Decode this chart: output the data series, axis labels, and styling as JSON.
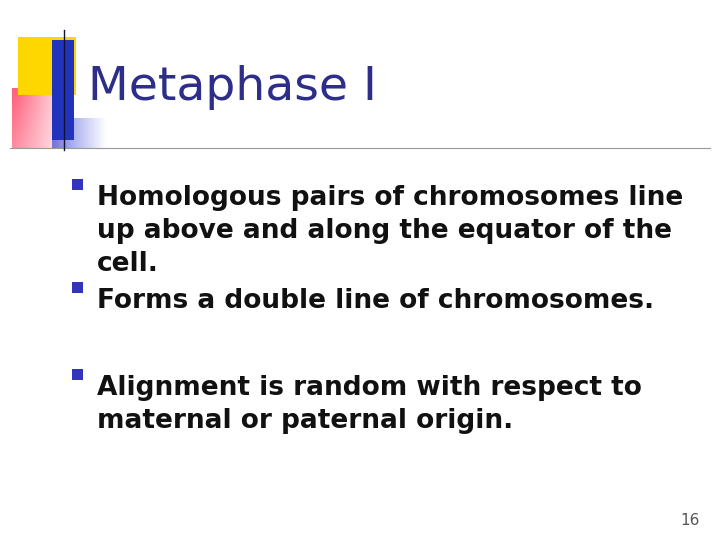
{
  "title": "Metaphase I",
  "title_color": "#2d2d8a",
  "title_fontsize": 34,
  "bullet_points": [
    "Homologous pairs of chromosomes line\nup above and along the equator of the\ncell.",
    "Forms a double line of chromosomes.",
    "Alignment is random with respect to\nmaternal or paternal origin."
  ],
  "bullet_color": "#111111",
  "bullet_fontsize": 19,
  "bullet_marker_color": "#3333bb",
  "page_number": "16",
  "background_color": "#ffffff",
  "line_color": "#999999",
  "decoration": {
    "yellow": "#FFD700",
    "pink": "#FF4466",
    "blue_dark": "#2233BB",
    "blue_mid": "#4455CC"
  }
}
